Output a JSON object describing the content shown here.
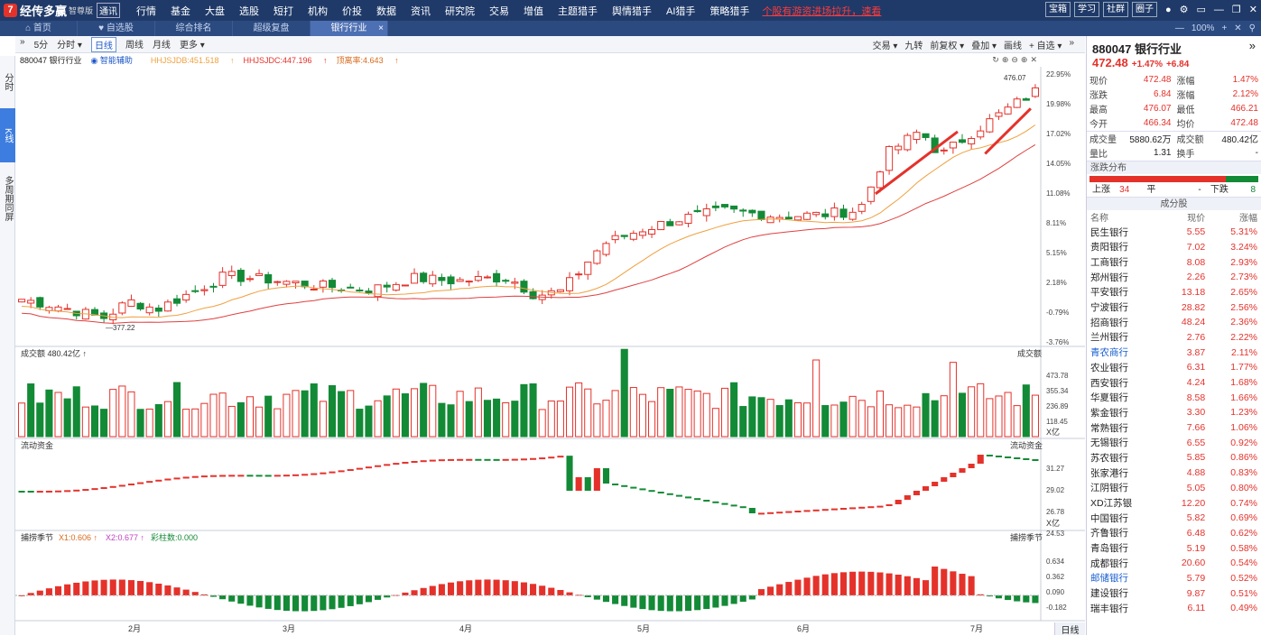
{
  "app": {
    "name": "经传多赢",
    "edition": "智尊版",
    "badge": "通讯"
  },
  "menu": [
    "行情",
    "基金",
    "大盘",
    "选股",
    "短打",
    "机构",
    "价投",
    "数据",
    "资讯",
    "研究院",
    "交易",
    "增值",
    "主题猎手",
    "舆情猎手",
    "AI猎手",
    "策略猎手"
  ],
  "promo": "个股有游资进场拉升，速看",
  "top_buttons": [
    "宝箱",
    "学习",
    "社群",
    "圈子"
  ],
  "tabs": [
    {
      "label": "首页"
    },
    {
      "label": "自选股"
    },
    {
      "label": "综合排名"
    },
    {
      "label": "超级复盘"
    },
    {
      "label": "银行行业",
      "active": true
    }
  ],
  "tab_close": "×",
  "zoom": "100%",
  "left_strip": [
    "分时",
    "K线",
    "多周期同屏"
  ],
  "chart_toolbar": {
    "left": [
      "»",
      "5分",
      "分时 ▾",
      "日线",
      "周线",
      "月线",
      "更多 ▾"
    ],
    "right": [
      "交易 ▾",
      "九转",
      "前复权 ▾",
      "叠加 ▾",
      "画线",
      "+ 自选 ▾",
      "»"
    ]
  },
  "info_line": {
    "code_name": "880047 银行行业",
    "assist": "智能辅助",
    "ma1": "HHJSJDB:451.518",
    "ma2": "HHJSJDC:447.196",
    "ratio": "顶离率:4.643"
  },
  "panels": {
    "volume": {
      "title": "成交额",
      "value": "480.42亿",
      "unit": "X亿",
      "right": "成交额",
      "ticks": [
        "473.78",
        "355.34",
        "236.89",
        "118.45"
      ]
    },
    "flow": {
      "title": "流动资金",
      "right": "流动资金",
      "unit": "X亿",
      "ticks": [
        "31.27",
        "29.02",
        "26.78",
        "24.53"
      ]
    },
    "season": {
      "title": "捕捞季节",
      "x1": "X1:0.606",
      "x2": "X2:0.677",
      "col": "彩柱数:0.000",
      "right": "捕捞季节",
      "ticks": [
        "0.634",
        "0.362",
        "0.090",
        "-0.182"
      ]
    }
  },
  "main_axis": {
    "pct_ticks": [
      "22.95%",
      "19.98%",
      "17.02%",
      "14.05%",
      "11.08%",
      "8.11%",
      "5.15%",
      "2.18%",
      "-0.79%",
      "-3.76%"
    ],
    "high_label": "476.07",
    "low_label": "377.22"
  },
  "months": [
    "2月",
    "3月",
    "4月",
    "5月",
    "6月",
    "7月"
  ],
  "period_label": "日线",
  "quote": {
    "code": "880047",
    "name": "银行行业",
    "price": "472.48",
    "chg_pct": "+1.47%",
    "chg": "+6.84",
    "rows": [
      [
        "现价",
        "472.48",
        "涨幅",
        "1.47%"
      ],
      [
        "涨跌",
        "6.84",
        "涨幅",
        "2.12%"
      ],
      [
        "最高",
        "476.07",
        "最低",
        "466.21"
      ],
      [
        "今开",
        "466.34",
        "均价",
        "472.48"
      ],
      [
        "成交量",
        "5880.62万",
        "成交额",
        "480.42亿"
      ],
      [
        "量比",
        "1.31",
        "换手",
        "-"
      ]
    ],
    "dist_title": "涨跌分布",
    "up_label": "上涨",
    "up": "34",
    "flat_label": "平",
    "flat": "-",
    "down_label": "下跌",
    "down": "8",
    "comp_title": "成分股",
    "comp_headers": [
      "名称",
      "现价",
      "涨幅"
    ],
    "components": [
      [
        "民生银行",
        "5.55",
        "5.31%"
      ],
      [
        "贵阳银行",
        "7.02",
        "3.24%"
      ],
      [
        "工商银行",
        "8.08",
        "2.93%"
      ],
      [
        "郑州银行",
        "2.26",
        "2.73%"
      ],
      [
        "平安银行",
        "13.18",
        "2.65%"
      ],
      [
        "宁波银行",
        "28.82",
        "2.56%"
      ],
      [
        "招商银行",
        "48.24",
        "2.36%"
      ],
      [
        "兰州银行",
        "2.76",
        "2.22%"
      ],
      [
        "青农商行",
        "3.87",
        "2.11%"
      ],
      [
        "农业银行",
        "6.31",
        "1.77%"
      ],
      [
        "西安银行",
        "4.24",
        "1.68%"
      ],
      [
        "华夏银行",
        "8.58",
        "1.66%"
      ],
      [
        "紫金银行",
        "3.30",
        "1.23%"
      ],
      [
        "常熟银行",
        "7.66",
        "1.06%"
      ],
      [
        "无锡银行",
        "6.55",
        "0.92%"
      ],
      [
        "苏农银行",
        "5.85",
        "0.86%"
      ],
      [
        "张家港行",
        "4.88",
        "0.83%"
      ],
      [
        "江阴银行",
        "5.05",
        "0.80%"
      ],
      [
        "XD江苏银",
        "12.20",
        "0.74%"
      ],
      [
        "中国银行",
        "5.82",
        "0.69%"
      ],
      [
        "齐鲁银行",
        "6.48",
        "0.62%"
      ],
      [
        "青岛银行",
        "5.19",
        "0.58%"
      ],
      [
        "成都银行",
        "20.60",
        "0.54%"
      ],
      [
        "邮储银行",
        "5.79",
        "0.52%"
      ],
      [
        "建设银行",
        "9.87",
        "0.51%"
      ],
      [
        "瑞丰银行",
        "6.11",
        "0.49%"
      ]
    ]
  },
  "colors": {
    "up": "#e4322b",
    "down": "#138a36",
    "ma1": "#f0a040",
    "ma2": "#e04040",
    "topbar": "#1f3a69"
  }
}
